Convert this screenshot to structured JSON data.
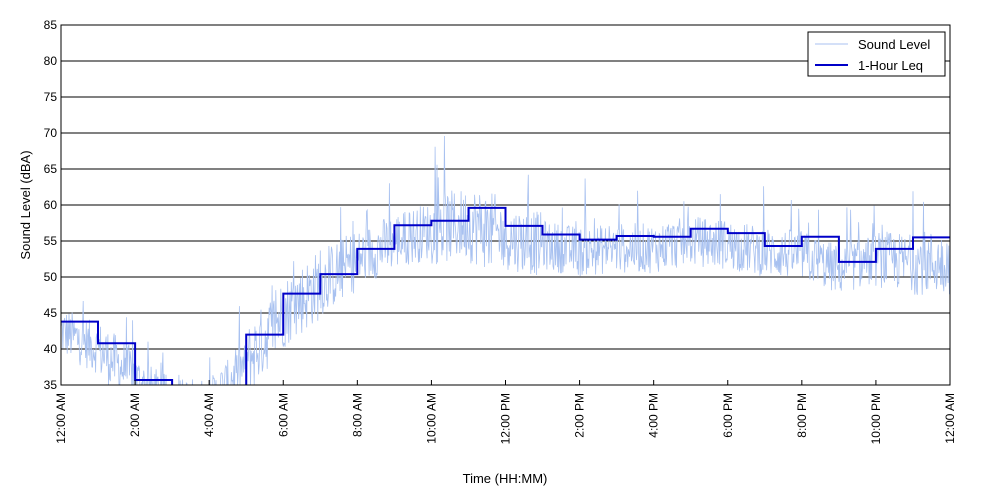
{
  "chart_data": {
    "type": "line",
    "title": "",
    "xlabel": "Time (HH:MM)",
    "ylabel": "Sound Level (dBA)",
    "xlim_hours": [
      0,
      24
    ],
    "ylim": [
      35,
      85
    ],
    "y_ticks": [
      35,
      40,
      45,
      50,
      55,
      60,
      65,
      70,
      75,
      80,
      85
    ],
    "x_tick_hours": [
      0,
      2,
      4,
      6,
      8,
      10,
      12,
      14,
      16,
      18,
      20,
      22,
      24
    ],
    "x_tick_labels": [
      "12:00 AM",
      "2:00 AM",
      "4:00 AM",
      "6:00 AM",
      "8:00 AM",
      "10:00 AM",
      "12:00 PM",
      "2:00 PM",
      "4:00 PM",
      "6:00 PM",
      "8:00 PM",
      "10:00 PM",
      "12:00 AM"
    ],
    "grid": "horizontal",
    "legend_position": "top-right",
    "series": [
      {
        "name": "Sound Level",
        "color": "#a8c1f0",
        "style": "thin-line",
        "hour_means": [
          42.5,
          40,
          36,
          33,
          33,
          38,
          45,
          49,
          52.5,
          55,
          56.5,
          57.5,
          55.5,
          54.5,
          53.5,
          54,
          54,
          55,
          54.5,
          53.5,
          53,
          51,
          52.5,
          52
        ],
        "hour_spread": [
          3.5,
          4,
          3,
          3,
          3,
          5,
          5,
          4.5,
          4,
          4,
          5,
          5.5,
          4.5,
          3.5,
          3.5,
          3.5,
          3.5,
          3.5,
          3.5,
          3.5,
          3.5,
          3.5,
          4,
          4.5
        ]
      },
      {
        "name": "1-Hour Leq",
        "color": "#0000c8",
        "style": "step",
        "x_hours": [
          0,
          1,
          2,
          3,
          4,
          5,
          6,
          7,
          8,
          9,
          10,
          11,
          12,
          13,
          14,
          15,
          16,
          17,
          18,
          19,
          20,
          21,
          22,
          23
        ],
        "values": [
          43.8,
          40.8,
          35.7,
          33.0,
          33.0,
          42.0,
          47.7,
          50.4,
          53.9,
          57.2,
          57.8,
          59.6,
          57.1,
          55.9,
          55.2,
          55.7,
          55.6,
          56.7,
          56.1,
          54.3,
          55.6,
          52.1,
          53.9,
          55.5
        ]
      }
    ]
  }
}
